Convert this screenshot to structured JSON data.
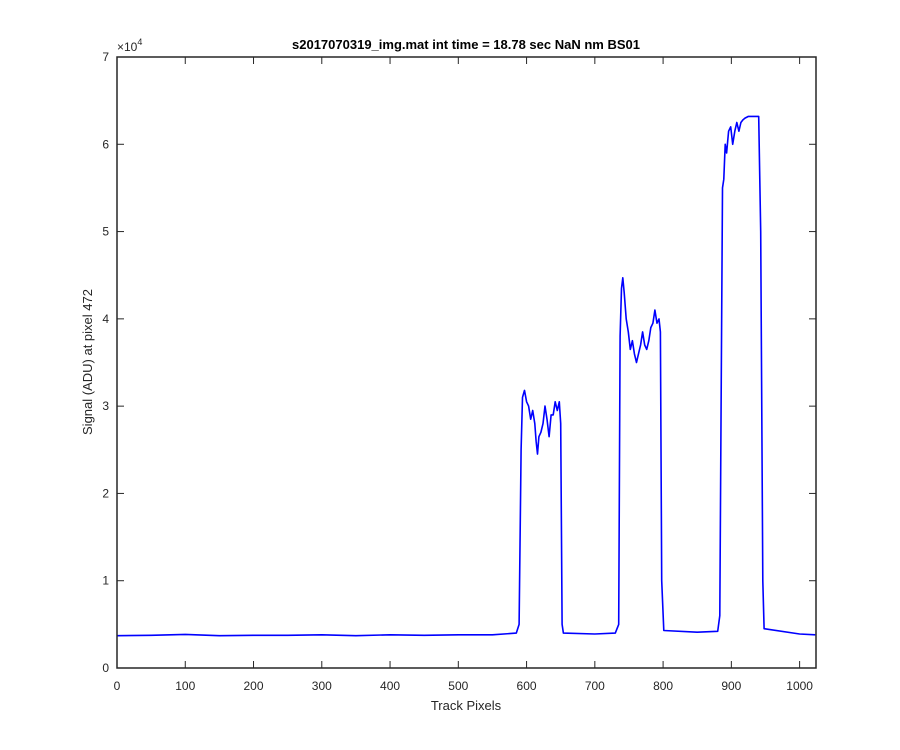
{
  "chart_data": {
    "type": "line",
    "title": "s2017070319_img.mat int time = 18.78 sec  NaN nm BS01",
    "xlabel": "Track Pixels",
    "ylabel": "Signal (ADU) at pixel 472",
    "xlim": [
      0,
      1024
    ],
    "ylim": [
      0,
      70000
    ],
    "xticks": [
      0,
      100,
      200,
      300,
      400,
      500,
      600,
      700,
      800,
      900,
      1000
    ],
    "yticks": [
      0,
      10000,
      20000,
      30000,
      40000,
      50000,
      60000,
      70000
    ],
    "ytick_labels": [
      "0",
      "1",
      "2",
      "3",
      "4",
      "5",
      "6",
      "7"
    ],
    "y_exponent_label": "×10",
    "y_exponent_power": "4",
    "grid": false,
    "series": [
      {
        "color": "#0000ff",
        "x": [
          0,
          50,
          100,
          150,
          200,
          250,
          300,
          350,
          400,
          450,
          500,
          550,
          585,
          589,
          592,
          594,
          597,
          600,
          603,
          606,
          609,
          612,
          614,
          616,
          618,
          621,
          624,
          627,
          630,
          633,
          636,
          639,
          642,
          645,
          648,
          650,
          652,
          654,
          700,
          730,
          735,
          737,
          739,
          741,
          743,
          746,
          749,
          752,
          755,
          758,
          761,
          764,
          767,
          770,
          773,
          776,
          779,
          782,
          785,
          788,
          791,
          794,
          796,
          798,
          801,
          850,
          880,
          883,
          885,
          887,
          889,
          891,
          893,
          896,
          899,
          902,
          905,
          908,
          911,
          914,
          917,
          920,
          925,
          930,
          935,
          940,
          943,
          946,
          948,
          1000,
          1023
        ],
        "y": [
          3700,
          3750,
          3850,
          3700,
          3750,
          3750,
          3800,
          3700,
          3800,
          3750,
          3800,
          3800,
          4000,
          5000,
          25000,
          31000,
          31800,
          30500,
          30000,
          28500,
          29500,
          28000,
          26000,
          24500,
          26500,
          27000,
          28000,
          30000,
          28500,
          26500,
          29000,
          29000,
          30500,
          29500,
          30500,
          28000,
          5000,
          4000,
          3900,
          4000,
          5000,
          38000,
          43500,
          44700,
          43000,
          40000,
          38500,
          36500,
          37500,
          36000,
          35000,
          36000,
          37000,
          38500,
          37000,
          36500,
          37500,
          39000,
          39500,
          41000,
          39500,
          40000,
          38500,
          10000,
          4300,
          4100,
          4200,
          6000,
          30000,
          55000,
          56000,
          60000,
          59000,
          61500,
          62000,
          60000,
          61500,
          62500,
          61500,
          62500,
          62800,
          63000,
          63200,
          63200,
          63200,
          63200,
          50000,
          10000,
          4500,
          3900,
          3800
        ]
      }
    ]
  }
}
